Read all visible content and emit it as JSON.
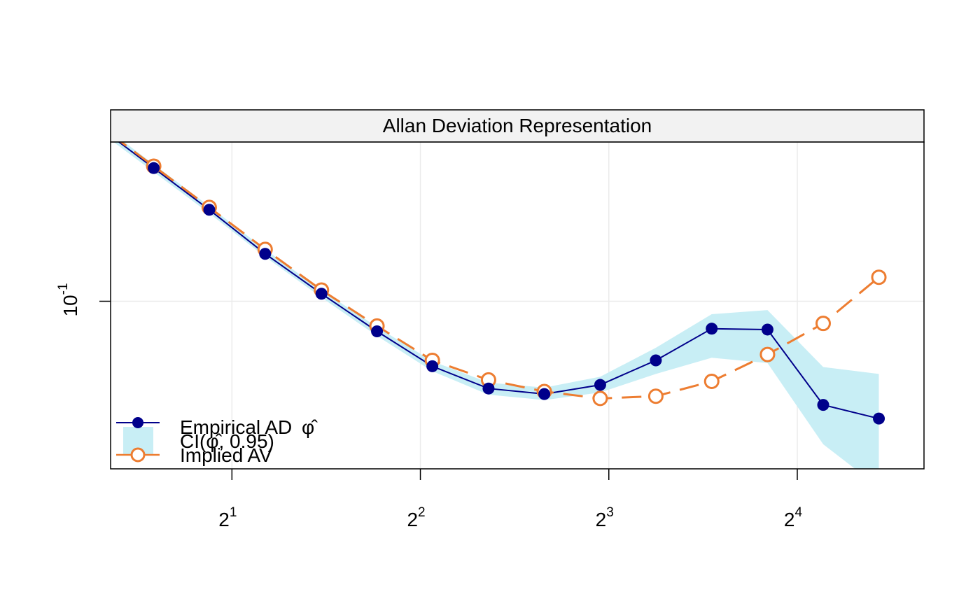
{
  "chart_data": {
    "type": "line",
    "title": "Allan Deviation Representation",
    "xlabel": "",
    "ylabel": "",
    "x_scale": "log2",
    "y_scale": "log10",
    "xlim": [
      1.28,
      25.5
    ],
    "ylim": [
      0.0418,
      0.229
    ],
    "x_ticks": [
      {
        "value": 2,
        "base": "2",
        "exp": "1"
      },
      {
        "value": 4,
        "base": "2",
        "exp": "2"
      },
      {
        "value": 8,
        "base": "2",
        "exp": "3"
      },
      {
        "value": 16,
        "base": "2",
        "exp": "4"
      }
    ],
    "y_ticks": [
      {
        "value": 0.1,
        "base": "10",
        "exp": "-1"
      }
    ],
    "grid": true,
    "legend_position": "bottom-left",
    "x": [
      1.5,
      1.84,
      2.26,
      2.78,
      3.41,
      4.18,
      5.14,
      6.31,
      7.75,
      9.51,
      11.68,
      14.34,
      17.6,
      21.6
    ],
    "series": [
      {
        "name": "Empirical AD",
        "name_mark": "φ̂",
        "kind": "line-points",
        "color": "#00008B",
        "values": [
          0.2,
          0.161,
          0.128,
          0.104,
          0.0855,
          0.0713,
          0.0635,
          0.0617,
          0.0647,
          0.0735,
          0.0867,
          0.0863,
          0.0583,
          0.0543
        ]
      },
      {
        "name": "CI(",
        "name_mark": "φ̂",
        "name_suffix": ", 0.95)",
        "kind": "band",
        "color": "#C8EEF5",
        "lower": [
          0.196,
          0.158,
          0.126,
          0.102,
          0.0835,
          0.0695,
          0.0615,
          0.0598,
          0.0622,
          0.0685,
          0.0745,
          0.0725,
          0.0475,
          0.038
        ],
        "upper": [
          0.204,
          0.164,
          0.131,
          0.106,
          0.0875,
          0.0732,
          0.0655,
          0.0638,
          0.0675,
          0.0785,
          0.0935,
          0.0955,
          0.071,
          0.0685
        ]
      },
      {
        "name": "Implied AV",
        "kind": "line-points-open",
        "color": "#ED7D31",
        "values": [
          0.202,
          0.163,
          0.131,
          0.106,
          0.0879,
          0.0735,
          0.0664,
          0.0625,
          0.0603,
          0.061,
          0.0659,
          0.0758,
          0.0891,
          0.1133
        ]
      }
    ]
  }
}
